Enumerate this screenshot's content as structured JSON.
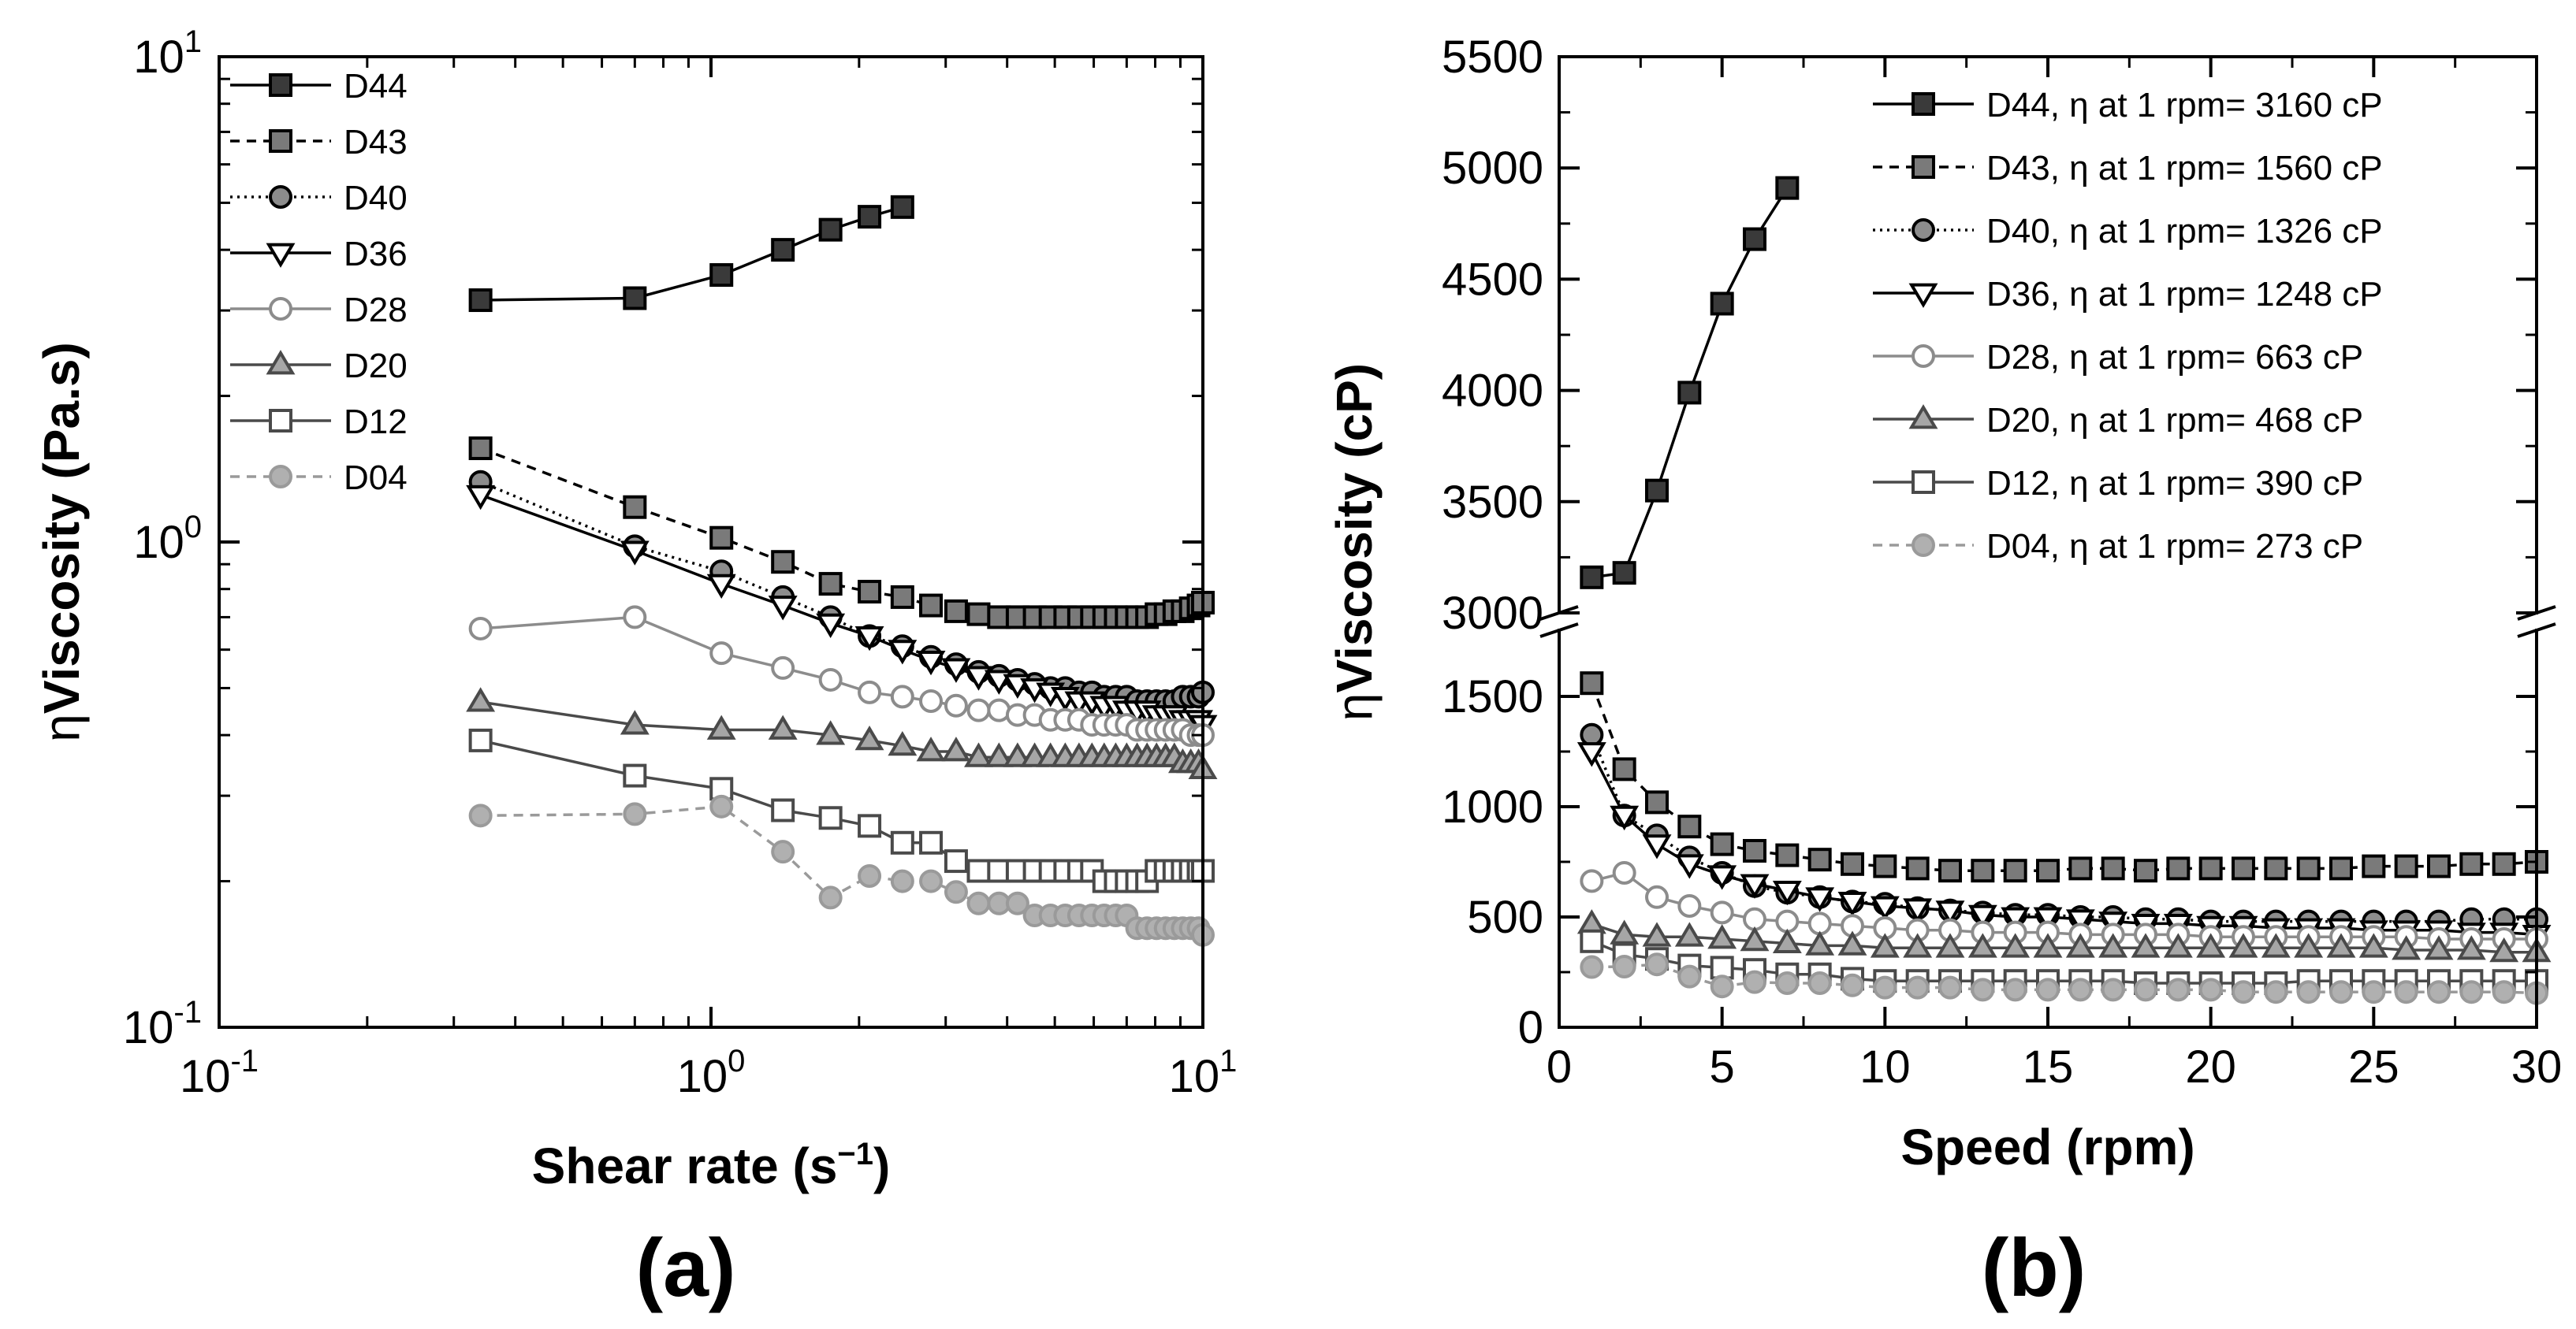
{
  "chart_data": [
    {
      "type": "line",
      "panel_label": "(a)",
      "xscale": "log",
      "yscale": "log",
      "xlim": [
        0.1,
        10
      ],
      "ylim": [
        0.1,
        10
      ],
      "x_ticks": [
        {
          "base": "10",
          "exp": "-1"
        },
        {
          "base": "10",
          "exp": "0"
        },
        {
          "base": "10",
          "exp": "1"
        }
      ],
      "y_ticks": [
        {
          "base": "10",
          "exp": "-1"
        },
        {
          "base": "10",
          "exp": "0"
        },
        {
          "base": "10",
          "exp": "1"
        }
      ],
      "xlabel": {
        "main": "Shear rate (s",
        "sup": "−1",
        "close": ")"
      },
      "ylabel": {
        "prefix": "η",
        "main": "Viscosity (Pa.s)"
      },
      "legend_position": "top-left",
      "series": [
        {
          "name": "D44",
          "x": [
            0.34,
            0.7,
            1.05,
            1.4,
            1.75,
            2.1,
            2.45
          ],
          "values": [
            3.15,
            3.18,
            3.55,
            4.0,
            4.4,
            4.68,
            4.9
          ]
        },
        {
          "name": "D43",
          "x": [
            0.34,
            0.7,
            1.05,
            1.4,
            1.75,
            2.1,
            2.45,
            2.8,
            3.15,
            3.5,
            3.85,
            4.2,
            4.55,
            4.9,
            5.25,
            5.6,
            5.95,
            6.3,
            6.65,
            7.0,
            7.35,
            7.7,
            8.05,
            8.4,
            8.75,
            9.1,
            9.45,
            9.8,
            10.0
          ],
          "values": [
            1.56,
            1.18,
            1.02,
            0.91,
            0.82,
            0.79,
            0.77,
            0.74,
            0.72,
            0.71,
            0.7,
            0.7,
            0.7,
            0.7,
            0.7,
            0.7,
            0.7,
            0.7,
            0.7,
            0.7,
            0.7,
            0.7,
            0.71,
            0.71,
            0.72,
            0.72,
            0.73,
            0.74,
            0.75
          ]
        },
        {
          "name": "D40",
          "x": [
            0.34,
            0.7,
            1.05,
            1.4,
            1.75,
            2.1,
            2.45,
            2.8,
            3.15,
            3.5,
            3.85,
            4.2,
            4.55,
            4.9,
            5.25,
            5.6,
            5.95,
            6.3,
            6.65,
            7.0,
            7.35,
            7.7,
            8.05,
            8.4,
            8.75,
            9.1,
            9.45,
            9.8,
            10.0
          ],
          "values": [
            1.33,
            0.98,
            0.87,
            0.77,
            0.7,
            0.64,
            0.61,
            0.58,
            0.56,
            0.54,
            0.53,
            0.52,
            0.51,
            0.5,
            0.5,
            0.49,
            0.49,
            0.48,
            0.48,
            0.48,
            0.47,
            0.47,
            0.47,
            0.47,
            0.47,
            0.48,
            0.48,
            0.48,
            0.49
          ]
        },
        {
          "name": "D36",
          "x": [
            0.34,
            0.7,
            1.05,
            1.4,
            1.75,
            2.1,
            2.45,
            2.8,
            3.15,
            3.5,
            3.85,
            4.2,
            4.55,
            4.9,
            5.25,
            5.6,
            5.95,
            6.3,
            6.65,
            7.0,
            7.35,
            7.7,
            8.05,
            8.4,
            8.75,
            9.1,
            9.45,
            9.8,
            10.0
          ],
          "values": [
            1.25,
            0.96,
            0.82,
            0.74,
            0.68,
            0.64,
            0.6,
            0.57,
            0.55,
            0.53,
            0.52,
            0.51,
            0.5,
            0.49,
            0.48,
            0.47,
            0.47,
            0.46,
            0.46,
            0.45,
            0.45,
            0.45,
            0.44,
            0.44,
            0.44,
            0.43,
            0.43,
            0.43,
            0.42
          ]
        },
        {
          "name": "D28",
          "x": [
            0.34,
            0.7,
            1.05,
            1.4,
            1.75,
            2.1,
            2.45,
            2.8,
            3.15,
            3.5,
            3.85,
            4.2,
            4.55,
            4.9,
            5.25,
            5.6,
            5.95,
            6.3,
            6.65,
            7.0,
            7.35,
            7.7,
            8.05,
            8.4,
            8.75,
            9.1,
            9.45,
            9.8,
            10.0
          ],
          "values": [
            0.663,
            0.7,
            0.59,
            0.55,
            0.52,
            0.49,
            0.48,
            0.47,
            0.46,
            0.45,
            0.45,
            0.44,
            0.44,
            0.43,
            0.43,
            0.43,
            0.42,
            0.42,
            0.42,
            0.42,
            0.41,
            0.41,
            0.41,
            0.41,
            0.41,
            0.41,
            0.4,
            0.4,
            0.4
          ]
        },
        {
          "name": "D20",
          "x": [
            0.34,
            0.7,
            1.05,
            1.4,
            1.75,
            2.1,
            2.45,
            2.8,
            3.15,
            3.5,
            3.85,
            4.2,
            4.55,
            4.9,
            5.25,
            5.6,
            5.95,
            6.3,
            6.65,
            7.0,
            7.35,
            7.7,
            8.05,
            8.4,
            8.75,
            9.1,
            9.45,
            9.8,
            10.0
          ],
          "values": [
            0.468,
            0.42,
            0.41,
            0.41,
            0.4,
            0.39,
            0.38,
            0.37,
            0.37,
            0.36,
            0.36,
            0.36,
            0.36,
            0.36,
            0.36,
            0.36,
            0.36,
            0.36,
            0.36,
            0.36,
            0.36,
            0.36,
            0.36,
            0.36,
            0.36,
            0.35,
            0.35,
            0.35,
            0.34
          ]
        },
        {
          "name": "D12",
          "x": [
            0.34,
            0.7,
            1.05,
            1.4,
            1.75,
            2.1,
            2.45,
            2.8,
            3.15,
            3.5,
            3.85,
            4.2,
            4.55,
            4.9,
            5.25,
            5.6,
            5.95,
            6.3,
            6.65,
            7.0,
            7.35,
            7.7,
            8.05,
            8.4,
            8.75,
            9.1,
            9.45,
            9.8,
            10.0
          ],
          "values": [
            0.39,
            0.33,
            0.31,
            0.28,
            0.27,
            0.26,
            0.24,
            0.24,
            0.22,
            0.21,
            0.21,
            0.21,
            0.21,
            0.21,
            0.21,
            0.21,
            0.21,
            0.2,
            0.2,
            0.2,
            0.2,
            0.2,
            0.21,
            0.21,
            0.21,
            0.21,
            0.21,
            0.21,
            0.21
          ]
        },
        {
          "name": "D04",
          "x": [
            0.34,
            0.7,
            1.05,
            1.4,
            1.75,
            2.1,
            2.45,
            2.8,
            3.15,
            3.5,
            3.85,
            4.2,
            4.55,
            4.9,
            5.25,
            5.6,
            5.95,
            6.3,
            6.65,
            7.0,
            7.35,
            7.7,
            8.05,
            8.4,
            8.75,
            9.1,
            9.45,
            9.8,
            10.0
          ],
          "values": [
            0.273,
            0.275,
            0.285,
            0.23,
            0.185,
            0.205,
            0.2,
            0.2,
            0.19,
            0.18,
            0.18,
            0.18,
            0.17,
            0.17,
            0.17,
            0.17,
            0.17,
            0.17,
            0.17,
            0.17,
            0.16,
            0.16,
            0.16,
            0.16,
            0.16,
            0.16,
            0.16,
            0.16,
            0.155
          ]
        }
      ]
    },
    {
      "type": "line",
      "panel_label": "(b)",
      "xlim": [
        0,
        30
      ],
      "ylim_lower": [
        0,
        1800
      ],
      "ylim_upper": [
        3000,
        5500
      ],
      "broken_axis": true,
      "x_ticks": [
        "0",
        "5",
        "10",
        "15",
        "20",
        "25",
        "30"
      ],
      "y_ticks_lower": [
        "0",
        "500",
        "1000",
        "1500"
      ],
      "y_ticks_upper": [
        "3000",
        "3500",
        "4000",
        "4500",
        "5000",
        "5500"
      ],
      "xlabel": "Speed (rpm)",
      "ylabel": {
        "prefix": "η",
        "main": "Viscosity (cP)"
      },
      "legend_position": "top-right",
      "series": [
        {
          "name": "D44",
          "legend": "D44, η at 1 rpm= 3160 cP",
          "x": [
            1,
            2,
            3,
            4,
            5,
            6,
            7
          ],
          "values": [
            3160,
            3180,
            3550,
            3990,
            4390,
            4680,
            4910
          ]
        },
        {
          "name": "D43",
          "legend": "D43, η at 1 rpm= 1560 cP",
          "x": [
            1,
            2,
            3,
            4,
            5,
            6,
            7,
            8,
            9,
            10,
            11,
            12,
            13,
            14,
            15,
            16,
            17,
            18,
            19,
            20,
            21,
            22,
            23,
            24,
            25,
            26,
            27,
            28,
            29,
            30
          ],
          "values": [
            1560,
            1170,
            1020,
            910,
            830,
            800,
            780,
            760,
            740,
            730,
            720,
            710,
            710,
            710,
            710,
            720,
            720,
            710,
            720,
            720,
            720,
            720,
            720,
            720,
            730,
            730,
            730,
            740,
            740,
            750
          ]
        },
        {
          "name": "D40",
          "legend": "D40, η at 1 rpm= 1326 cP",
          "x": [
            1,
            2,
            3,
            4,
            5,
            6,
            7,
            8,
            9,
            10,
            11,
            12,
            13,
            14,
            15,
            16,
            17,
            18,
            19,
            20,
            21,
            22,
            23,
            24,
            25,
            26,
            27,
            28,
            29,
            30
          ],
          "values": [
            1326,
            960,
            870,
            770,
            700,
            640,
            610,
            590,
            570,
            560,
            540,
            530,
            520,
            510,
            510,
            500,
            500,
            490,
            490,
            480,
            480,
            480,
            480,
            480,
            480,
            480,
            480,
            490,
            490,
            490
          ]
        },
        {
          "name": "D36",
          "legend": "D36, η at 1 rpm= 1248 cP",
          "x": [
            1,
            2,
            3,
            4,
            5,
            6,
            7,
            8,
            9,
            10,
            11,
            12,
            13,
            14,
            15,
            16,
            17,
            18,
            19,
            20,
            21,
            22,
            23,
            24,
            25,
            26,
            27,
            28,
            29,
            30
          ],
          "values": [
            1248,
            960,
            830,
            740,
            690,
            650,
            620,
            590,
            570,
            550,
            540,
            530,
            510,
            500,
            500,
            490,
            480,
            470,
            470,
            460,
            460,
            450,
            450,
            450,
            440,
            440,
            440,
            430,
            430,
            420
          ]
        },
        {
          "name": "D28",
          "legend": "D28, η at 1 rpm= 663 cP",
          "x": [
            1,
            2,
            3,
            4,
            5,
            6,
            7,
            8,
            9,
            10,
            11,
            12,
            13,
            14,
            15,
            16,
            17,
            18,
            19,
            20,
            21,
            22,
            23,
            24,
            25,
            26,
            27,
            28,
            29,
            30
          ],
          "values": [
            663,
            700,
            590,
            550,
            520,
            490,
            480,
            470,
            460,
            450,
            440,
            440,
            430,
            430,
            430,
            420,
            420,
            420,
            420,
            410,
            410,
            410,
            410,
            410,
            410,
            410,
            400,
            400,
            400,
            400
          ]
        },
        {
          "name": "D20",
          "legend": "D20, η at 1 rpm= 468 cP",
          "x": [
            1,
            2,
            3,
            4,
            5,
            6,
            7,
            8,
            9,
            10,
            11,
            12,
            13,
            14,
            15,
            16,
            17,
            18,
            19,
            20,
            21,
            22,
            23,
            24,
            25,
            26,
            27,
            28,
            29,
            30
          ],
          "values": [
            468,
            420,
            410,
            410,
            400,
            390,
            380,
            370,
            370,
            360,
            360,
            360,
            360,
            360,
            360,
            360,
            360,
            360,
            360,
            360,
            360,
            360,
            360,
            360,
            360,
            350,
            350,
            350,
            340,
            340
          ]
        },
        {
          "name": "D12",
          "legend": "D12, η at 1 rpm= 390 cP",
          "x": [
            1,
            2,
            3,
            4,
            5,
            6,
            7,
            8,
            9,
            10,
            11,
            12,
            13,
            14,
            15,
            16,
            17,
            18,
            19,
            20,
            21,
            22,
            23,
            24,
            25,
            26,
            27,
            28,
            29,
            30
          ],
          "values": [
            390,
            330,
            310,
            280,
            270,
            260,
            240,
            240,
            220,
            210,
            210,
            210,
            210,
            210,
            210,
            210,
            210,
            200,
            200,
            200,
            200,
            200,
            210,
            210,
            210,
            210,
            210,
            210,
            210,
            210
          ]
        },
        {
          "name": "D04",
          "legend": "D04, η at 1 rpm= 273 cP",
          "x": [
            1,
            2,
            3,
            4,
            5,
            6,
            7,
            8,
            9,
            10,
            11,
            12,
            13,
            14,
            15,
            16,
            17,
            18,
            19,
            20,
            21,
            22,
            23,
            24,
            25,
            26,
            27,
            28,
            29,
            30
          ],
          "values": [
            273,
            275,
            285,
            230,
            185,
            205,
            200,
            200,
            190,
            180,
            180,
            180,
            170,
            170,
            170,
            170,
            170,
            170,
            170,
            170,
            160,
            160,
            160,
            160,
            160,
            160,
            160,
            160,
            160,
            155
          ]
        }
      ]
    }
  ],
  "series_styles": [
    {
      "name": "D44",
      "marker": "square",
      "fill": "#3a3a3a",
      "stroke": "#000000",
      "line": "#000000",
      "dash": ""
    },
    {
      "name": "D43",
      "marker": "square",
      "fill": "#7a7a7a",
      "stroke": "#000000",
      "line": "#000000",
      "dash": "12,9"
    },
    {
      "name": "D40",
      "marker": "circle",
      "fill": "#8c8c8c",
      "stroke": "#000000",
      "line": "#000000",
      "dash": "3,6"
    },
    {
      "name": "D36",
      "marker": "triangle-down",
      "fill": "#ffffff",
      "stroke": "#000000",
      "line": "#000000",
      "dash": ""
    },
    {
      "name": "D28",
      "marker": "circle",
      "fill": "#ffffff",
      "stroke": "#8c8c8c",
      "line": "#8c8c8c",
      "dash": ""
    },
    {
      "name": "D20",
      "marker": "triangle-up",
      "fill": "#a6a6a6",
      "stroke": "#4a4a4a",
      "line": "#4a4a4a",
      "dash": ""
    },
    {
      "name": "D12",
      "marker": "square",
      "fill": "#ffffff",
      "stroke": "#4a4a4a",
      "line": "#4a4a4a",
      "dash": ""
    },
    {
      "name": "D04",
      "marker": "circle",
      "fill": "#b0b0b0",
      "stroke": "#9a9a9a",
      "line": "#9a9a9a",
      "dash": "12,9"
    }
  ]
}
